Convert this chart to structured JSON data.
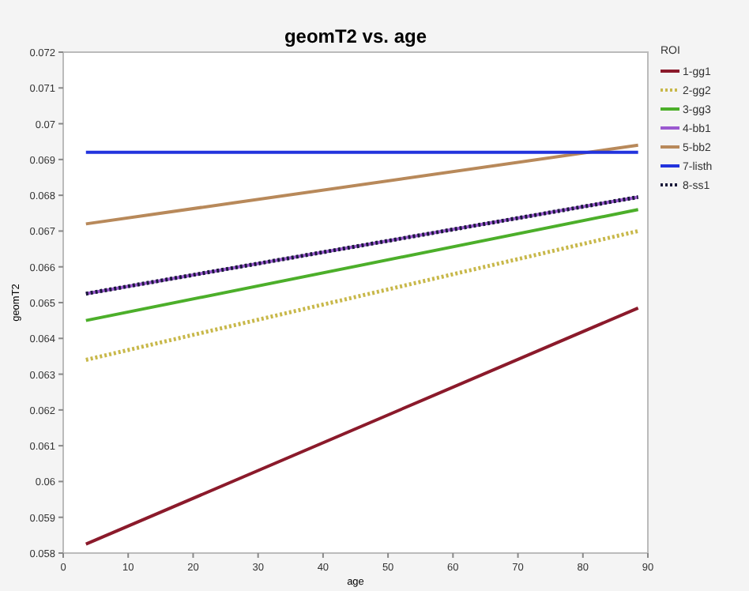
{
  "chart_data": {
    "type": "line",
    "title": "geomT2 vs. age",
    "xlabel": "age",
    "ylabel": "geomT2",
    "legend_title": "ROI",
    "legend": "right",
    "grid": false,
    "marker": "none",
    "x": [
      3.5,
      88.5
    ],
    "xlim": [
      0,
      90
    ],
    "xticks": [
      0,
      10,
      20,
      30,
      40,
      50,
      60,
      70,
      80,
      90
    ],
    "ylim": [
      0.058,
      0.072
    ],
    "yticks": [
      0.058,
      0.059,
      0.06,
      0.061,
      0.062,
      0.063,
      0.064,
      0.065,
      0.066,
      0.067,
      0.068,
      0.069,
      0.07,
      0.071,
      0.072
    ],
    "series": [
      {
        "name": "1-gg1",
        "color": "#8b1a2b",
        "values": [
          0.05825,
          0.06485
        ],
        "line_style": "solid"
      },
      {
        "name": "2-gg2",
        "color": "#c8b84a",
        "values": [
          0.0634,
          0.067
        ],
        "line_style": "dotted"
      },
      {
        "name": "3-gg3",
        "color": "#4caf2a",
        "values": [
          0.0645,
          0.0676
        ],
        "line_style": "solid"
      },
      {
        "name": "4-bb1",
        "color": "#9b59d0",
        "values": [
          0.06525,
          0.06795
        ],
        "line_style": "solid"
      },
      {
        "name": "5-bb2",
        "color": "#b8895a",
        "values": [
          0.0672,
          0.0694
        ],
        "line_style": "solid"
      },
      {
        "name": "7-listh",
        "color": "#2233dd",
        "values": [
          0.0692,
          0.0692
        ],
        "line_style": "solid"
      },
      {
        "name": "8-ss1",
        "color": "#1a1a3a",
        "values": [
          0.06525,
          0.06795
        ],
        "line_style": "dotted"
      }
    ]
  }
}
